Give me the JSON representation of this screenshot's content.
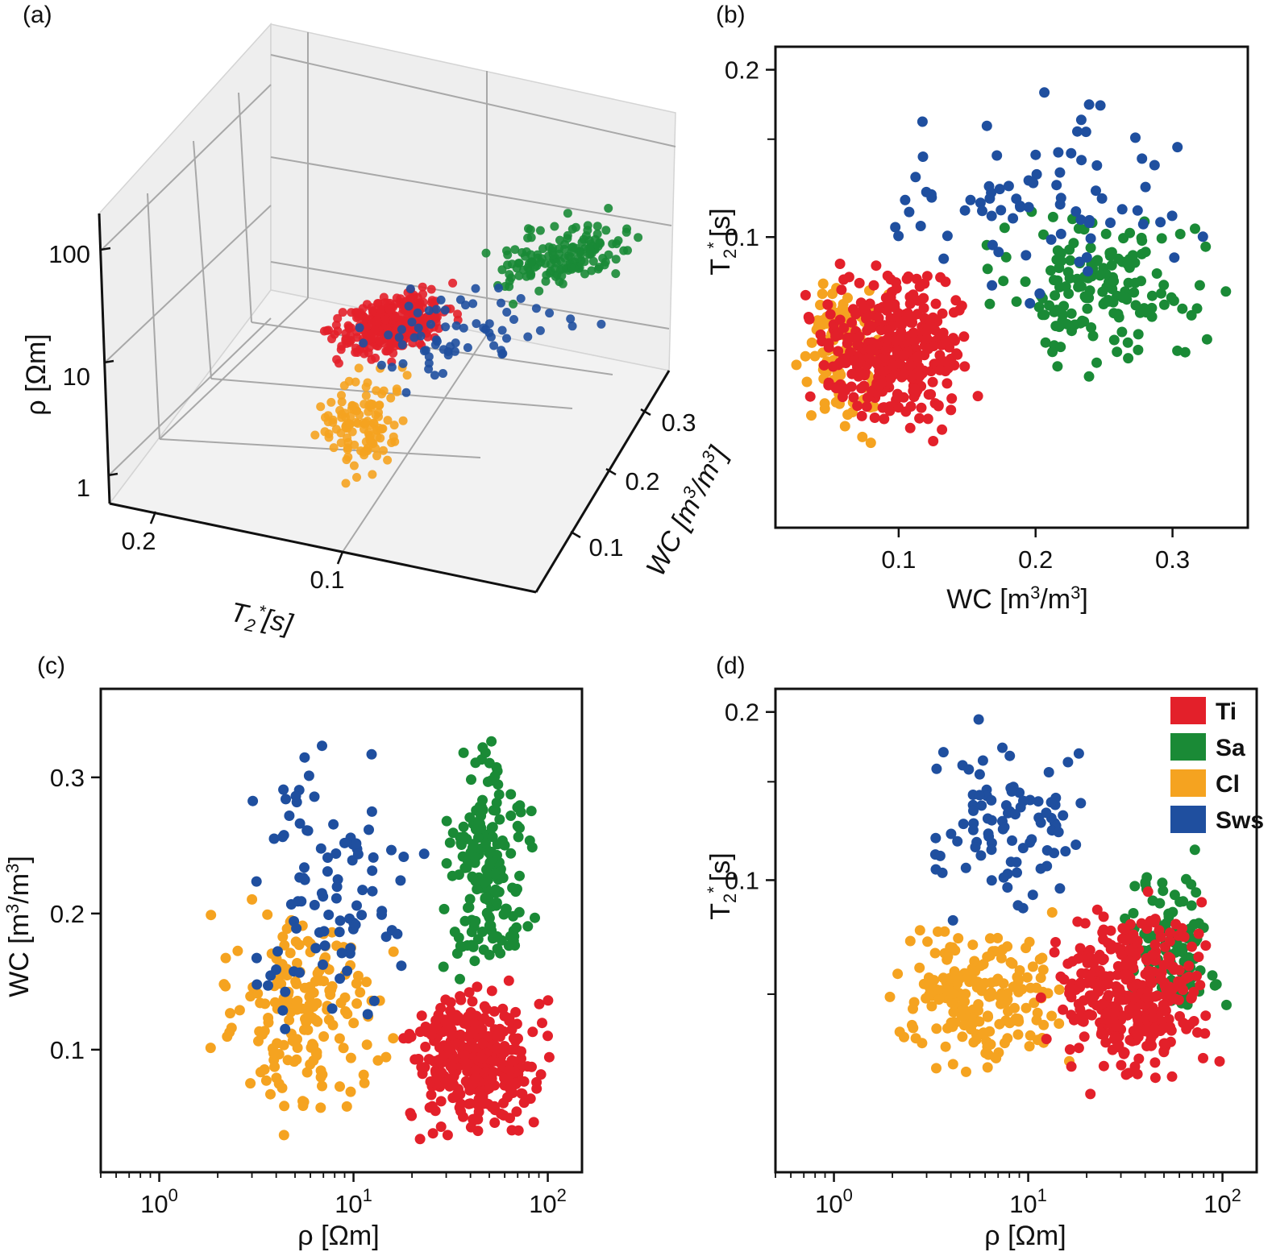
{
  "classes": [
    {
      "key": "Ti",
      "label": "Ti",
      "color": "#e3202a"
    },
    {
      "key": "Sa",
      "label": "Sa",
      "color": "#1a8a36"
    },
    {
      "key": "Cl",
      "label": "Cl",
      "color": "#f5a320"
    },
    {
      "key": "Sws",
      "label": "Sws",
      "color": "#1f4f9f"
    }
  ],
  "chart_data": [
    {
      "id": "a",
      "panel_label": "(a)",
      "type": "scatter3d",
      "xlabel": "WC [m3/m3]",
      "ylabel": "T2*[s]",
      "zlabel": "ρ [Ωm]",
      "zscale": "log",
      "x_ticks": [
        "0.1",
        "0.2",
        "0.3"
      ],
      "y_ticks": [
        "0.2",
        "0.1"
      ],
      "z_ticks": [
        "1",
        "10",
        "100"
      ],
      "xlim": [
        0.0,
        0.37
      ],
      "ylim": [
        0.0,
        0.25
      ],
      "zlim": [
        0.5,
        200
      ],
      "clusters": [
        {
          "class": "Sa",
          "n": 150,
          "wc": [
            0.18,
            0.35
          ],
          "t2": [
            0.05,
            0.12
          ],
          "rho": [
            20,
            130
          ]
        },
        {
          "class": "Ti",
          "n": 330,
          "wc": [
            0.03,
            0.16
          ],
          "t2": [
            0.04,
            0.09
          ],
          "rho": [
            15,
            90
          ]
        },
        {
          "class": "Cl",
          "n": 120,
          "wc": [
            0.02,
            0.12
          ],
          "t2": [
            0.04,
            0.09
          ],
          "rho": [
            1,
            20
          ]
        },
        {
          "class": "Sws",
          "n": 70,
          "wc": [
            0.1,
            0.35
          ],
          "t2": [
            0.09,
            0.21
          ],
          "rho": [
            2,
            40
          ]
        }
      ]
    },
    {
      "id": "b",
      "panel_label": "(b)",
      "type": "scatter",
      "xlabel": "WC [m³/m³]",
      "xlabel_base": "WC [m",
      "xlabel_sup1": "3",
      "xlabel_mid": "/m",
      "xlabel_sup2": "3",
      "xlabel_end": "]",
      "ylabel": "T2* [s]",
      "ylabel_main": "T",
      "ylabel_sub": "2",
      "ylabel_sup": "*",
      "ylabel_end": "[s]",
      "xlim": [
        0.01,
        0.355
      ],
      "ylim": [
        0.03,
        0.22
      ],
      "yscale": "log",
      "x_ticks": [
        0.1,
        0.2,
        0.3
      ],
      "x_tick_labels": [
        "0.1",
        "0.2",
        "0.3"
      ],
      "y_ticks": [
        0.2,
        0.1
      ],
      "y_tick_labels": [
        "0.2",
        "0.1"
      ],
      "y_minor_ticks": [
        0.15,
        0.0625
      ],
      "clusters": [
        {
          "class": "Sa",
          "n": 160,
          "wc": [
            0.14,
            0.35
          ],
          "t2": [
            0.055,
            0.12
          ]
        },
        {
          "class": "Cl",
          "n": 110,
          "wc": [
            0.02,
            0.1
          ],
          "t2": [
            0.04,
            0.1
          ]
        },
        {
          "class": "Ti",
          "n": 340,
          "wc": [
            0.02,
            0.17
          ],
          "t2": [
            0.04,
            0.095
          ]
        },
        {
          "class": "Sws",
          "n": 80,
          "wc": [
            0.06,
            0.35
          ],
          "t2": [
            0.07,
            0.21
          ]
        }
      ]
    },
    {
      "id": "c",
      "panel_label": "(c)",
      "type": "scatter",
      "xlabel": "ρ [Ωm]",
      "ylabel": "WC [m³/m³]",
      "ylabel_base": "WC [m",
      "ylabel_sup1": "3",
      "ylabel_mid": "/m",
      "ylabel_sup2": "3",
      "ylabel_end": "]",
      "xscale": "log",
      "xlim": [
        0.5,
        150
      ],
      "ylim": [
        0.01,
        0.365
      ],
      "x_ticks": [
        1,
        10,
        100
      ],
      "x_tick_labels": [
        "10",
        "10",
        "10"
      ],
      "x_tick_exponents": [
        "0",
        "1",
        "2"
      ],
      "y_ticks": [
        0.3,
        0.2,
        0.1
      ],
      "y_tick_labels": [
        "0.3",
        "0.2",
        "0.1"
      ],
      "clusters": [
        {
          "class": "Cl",
          "n": 180,
          "rho": [
            1.5,
            20
          ],
          "wc": [
            0.02,
            0.24
          ]
        },
        {
          "class": "Sws",
          "n": 95,
          "rho": [
            2,
            30
          ],
          "wc": [
            0.08,
            0.35
          ]
        },
        {
          "class": "Sa",
          "n": 180,
          "rho": [
            25,
            95
          ],
          "wc": [
            0.13,
            0.35
          ]
        },
        {
          "class": "Ti",
          "n": 340,
          "rho": [
            15,
            120
          ],
          "wc": [
            0.02,
            0.16
          ]
        }
      ]
    },
    {
      "id": "d",
      "panel_label": "(d)",
      "type": "scatter",
      "xlabel": "ρ [Ωm]",
      "ylabel": "T2* [s]",
      "ylabel_main": "T",
      "ylabel_sub": "2",
      "ylabel_sup": "*",
      "ylabel_end": "[s]",
      "xscale": "log",
      "yscale": "log",
      "xlim": [
        0.5,
        150
      ],
      "ylim": [
        0.03,
        0.22
      ],
      "x_ticks": [
        1,
        10,
        100
      ],
      "x_tick_labels": [
        "10",
        "10",
        "10"
      ],
      "x_tick_exponents": [
        "0",
        "1",
        "2"
      ],
      "y_ticks": [
        0.2,
        0.1
      ],
      "y_tick_labels": [
        "0.2",
        "0.1"
      ],
      "y_minor_ticks": [
        0.15,
        0.0625
      ],
      "legend_position": "top-right",
      "clusters": [
        {
          "class": "Cl",
          "n": 190,
          "rho": [
            1.5,
            22
          ],
          "t2": [
            0.04,
            0.095
          ]
        },
        {
          "class": "Sws",
          "n": 90,
          "rho": [
            2,
            30
          ],
          "t2": [
            0.075,
            0.21
          ]
        },
        {
          "class": "Sa",
          "n": 110,
          "rho": [
            25,
            115
          ],
          "t2": [
            0.05,
            0.12
          ]
        },
        {
          "class": "Ti",
          "n": 360,
          "rho": [
            10,
            110
          ],
          "t2": [
            0.04,
            0.1
          ]
        }
      ]
    }
  ]
}
